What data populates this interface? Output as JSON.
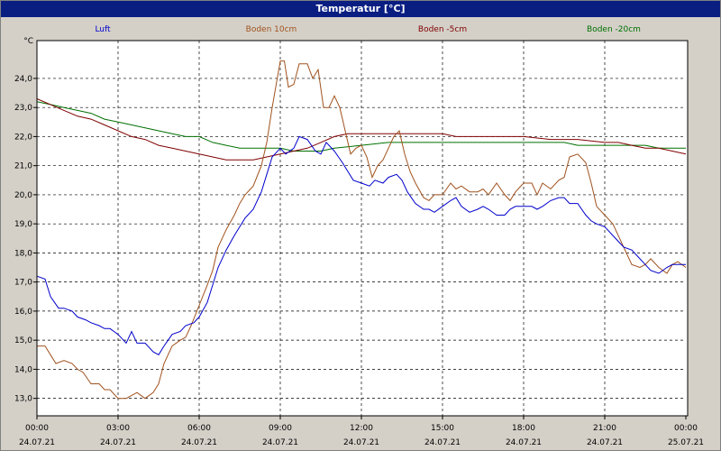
{
  "window": {
    "title": "Temperatur [°C]"
  },
  "chart_data": {
    "type": "line",
    "title": "Temperatur [°C]",
    "ylabel": "°C",
    "ylim": [
      12.4,
      25.3
    ],
    "xlim": [
      "00:00",
      "24:00"
    ],
    "yticks": [
      "13,0",
      "14,0",
      "15,0",
      "16,0",
      "17,0",
      "18,0",
      "19,0",
      "20,0",
      "21,0",
      "22,0",
      "23,0",
      "24,0"
    ],
    "ytick_values": [
      13,
      14,
      15,
      16,
      17,
      18,
      19,
      20,
      21,
      22,
      23,
      24
    ],
    "xticks": [
      {
        "time": "00:00",
        "date": "24.07.21"
      },
      {
        "time": "03:00",
        "date": "24.07.21"
      },
      {
        "time": "06:00",
        "date": "24.07.21"
      },
      {
        "time": "09:00",
        "date": "24.07.21"
      },
      {
        "time": "12:00",
        "date": "24.07.21"
      },
      {
        "time": "15:00",
        "date": "24.07.21"
      },
      {
        "time": "18:00",
        "date": "24.07.21"
      },
      {
        "time": "21:00",
        "date": "24.07.21"
      },
      {
        "time": "00:00",
        "date": "25.07.21"
      }
    ],
    "grid": true,
    "legend_position": "top",
    "series": [
      {
        "name": "Luft",
        "color": "#0000cc",
        "x": [
          0,
          0.3,
          0.5,
          0.8,
          1,
          1.3,
          1.5,
          1.8,
          2,
          2.3,
          2.5,
          2.7,
          3,
          3.3,
          3.5,
          3.7,
          4,
          4.3,
          4.5,
          4.7,
          5,
          5.3,
          5.5,
          5.8,
          6,
          6.3,
          6.5,
          6.7,
          7,
          7.3,
          7.5,
          7.7,
          8,
          8.3,
          8.5,
          8.7,
          9,
          9.2,
          9.5,
          9.7,
          10,
          10.3,
          10.5,
          10.7,
          11,
          11.3,
          11.5,
          11.7,
          12,
          12.3,
          12.5,
          12.8,
          13,
          13.3,
          13.5,
          13.7,
          14,
          14.3,
          14.5,
          14.7,
          15,
          15.3,
          15.5,
          15.7,
          16,
          16.3,
          16.5,
          16.7,
          17,
          17.3,
          17.5,
          17.7,
          18,
          18.3,
          18.5,
          18.7,
          19,
          19.3,
          19.5,
          19.7,
          20,
          20.3,
          20.5,
          20.7,
          21,
          21.3,
          21.5,
          21.7,
          22,
          22.3,
          22.5,
          22.7,
          23,
          23.3,
          23.5,
          23.7,
          24
        ],
        "y": [
          17.2,
          17.1,
          16.5,
          16.1,
          16.1,
          16,
          15.8,
          15.7,
          15.6,
          15.5,
          15.4,
          15.4,
          15.2,
          14.9,
          15.3,
          14.9,
          14.9,
          14.6,
          14.5,
          14.8,
          15.2,
          15.3,
          15.5,
          15.6,
          15.8,
          16.3,
          16.9,
          17.5,
          18.1,
          18.6,
          18.9,
          19.2,
          19.5,
          20.1,
          20.7,
          21.3,
          21.6,
          21.4,
          21.6,
          22,
          21.9,
          21.5,
          21.4,
          21.8,
          21.5,
          21.1,
          20.8,
          20.5,
          20.4,
          20.3,
          20.5,
          20.4,
          20.6,
          20.7,
          20.5,
          20.1,
          19.7,
          19.5,
          19.5,
          19.4,
          19.6,
          19.8,
          19.9,
          19.6,
          19.4,
          19.5,
          19.6,
          19.5,
          19.3,
          19.3,
          19.5,
          19.6,
          19.6,
          19.6,
          19.5,
          19.6,
          19.8,
          19.9,
          19.9,
          19.7,
          19.7,
          19.3,
          19.1,
          19.0,
          18.9,
          18.6,
          18.4,
          18.2,
          18.1,
          17.8,
          17.6,
          17.4,
          17.3,
          17.5,
          17.6,
          17.6,
          17.6
        ]
      },
      {
        "name": "Boden 10cm",
        "color": "#a0521e",
        "x": [
          0,
          0.3,
          0.5,
          0.7,
          1,
          1.3,
          1.5,
          1.7,
          2,
          2.3,
          2.5,
          2.7,
          3,
          3.3,
          3.5,
          3.7,
          4,
          4.3,
          4.5,
          4.7,
          5,
          5.3,
          5.5,
          5.7,
          6,
          6.3,
          6.5,
          6.7,
          7,
          7.3,
          7.5,
          7.7,
          8,
          8.3,
          8.5,
          8.7,
          9,
          9.15,
          9.3,
          9.5,
          9.7,
          10,
          10.2,
          10.4,
          10.6,
          10.8,
          11,
          11.2,
          11.4,
          11.6,
          11.8,
          12,
          12.2,
          12.4,
          12.6,
          12.8,
          13,
          13.2,
          13.4,
          13.6,
          13.8,
          14,
          14.3,
          14.5,
          14.7,
          15,
          15.3,
          15.5,
          15.7,
          16,
          16.3,
          16.5,
          16.7,
          17,
          17.3,
          17.5,
          17.7,
          18,
          18.3,
          18.5,
          18.7,
          19,
          19.3,
          19.5,
          19.7,
          20,
          20.3,
          20.5,
          20.7,
          21,
          21.3,
          21.5,
          21.7,
          22,
          22.3,
          22.5,
          22.7,
          23,
          23.3,
          23.5,
          23.7,
          24
        ],
        "y": [
          14.8,
          14.8,
          14.5,
          14.2,
          14.3,
          14.2,
          14,
          13.9,
          13.5,
          13.5,
          13.3,
          13.3,
          13,
          13,
          13.1,
          13.2,
          13,
          13.2,
          13.5,
          14.2,
          14.8,
          15.0,
          15.1,
          15.5,
          16.2,
          16.9,
          17.4,
          18.2,
          18.8,
          19.3,
          19.7,
          20.0,
          20.3,
          21.0,
          21.8,
          23.0,
          24.6,
          24.6,
          23.7,
          23.8,
          24.5,
          24.5,
          24.0,
          24.3,
          23.0,
          23.0,
          23.4,
          23.0,
          22.2,
          21.4,
          21.6,
          21.7,
          21.3,
          20.6,
          21.0,
          21.2,
          21.6,
          22.0,
          22.2,
          21.4,
          20.8,
          20.4,
          19.9,
          19.8,
          20.0,
          20.0,
          20.4,
          20.2,
          20.3,
          20.1,
          20.1,
          20.2,
          20.0,
          20.4,
          20.0,
          19.8,
          20.1,
          20.4,
          20.4,
          20.0,
          20.4,
          20.2,
          20.5,
          20.6,
          21.3,
          21.4,
          21.1,
          20.4,
          19.6,
          19.3,
          19.0,
          18.6,
          18.2,
          17.6,
          17.5,
          17.6,
          17.8,
          17.5,
          17.3,
          17.6,
          17.7,
          17.5
        ]
      },
      {
        "name": "Boden -5cm",
        "color": "#800000",
        "x": [
          0,
          0.5,
          1,
          1.5,
          2,
          2.5,
          3,
          3.5,
          4,
          4.5,
          5,
          5.5,
          6,
          6.5,
          7,
          7.5,
          8,
          8.5,
          9,
          9.5,
          10,
          10.5,
          11,
          11.5,
          12,
          13,
          14,
          15,
          15.5,
          16,
          17,
          18,
          19,
          19.5,
          20,
          21,
          21.5,
          22,
          22.5,
          23,
          23.5,
          24
        ],
        "y": [
          23.3,
          23.1,
          22.9,
          22.7,
          22.6,
          22.4,
          22.2,
          22.0,
          21.9,
          21.7,
          21.6,
          21.5,
          21.4,
          21.3,
          21.2,
          21.2,
          21.2,
          21.3,
          21.4,
          21.5,
          21.6,
          21.8,
          22.0,
          22.1,
          22.1,
          22.1,
          22.1,
          22.1,
          22.0,
          22.0,
          22.0,
          22.0,
          21.9,
          21.9,
          21.9,
          21.8,
          21.8,
          21.7,
          21.6,
          21.6,
          21.5,
          21.4
        ]
      },
      {
        "name": "Boden -20cm",
        "color": "#007000",
        "x": [
          0,
          0.5,
          1,
          1.5,
          2,
          2.5,
          3,
          3.5,
          4,
          4.5,
          5,
          5.5,
          6,
          6.5,
          7,
          7.5,
          8,
          8.5,
          9,
          9.5,
          10,
          10.5,
          11,
          12,
          13,
          14,
          15,
          16,
          17,
          18,
          19,
          19.5,
          20,
          21,
          22,
          22.5,
          23,
          23.5,
          24
        ],
        "y": [
          23.2,
          23.1,
          23.0,
          22.9,
          22.8,
          22.6,
          22.5,
          22.4,
          22.3,
          22.2,
          22.1,
          22.0,
          22.0,
          21.8,
          21.7,
          21.6,
          21.6,
          21.6,
          21.6,
          21.5,
          21.5,
          21.5,
          21.6,
          21.7,
          21.8,
          21.8,
          21.8,
          21.8,
          21.8,
          21.8,
          21.8,
          21.8,
          21.7,
          21.7,
          21.7,
          21.7,
          21.6,
          21.6,
          21.6
        ]
      }
    ]
  }
}
